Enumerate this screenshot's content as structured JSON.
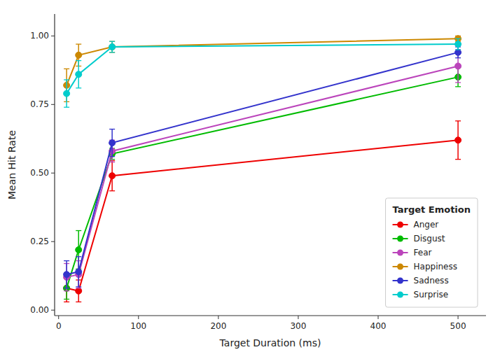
{
  "chart_data": {
    "type": "line",
    "x_label": "Target Duration (ms)",
    "y_label": "Mean Hit Rate",
    "legend_title": "Target Emotion",
    "x": [
      10,
      25,
      67,
      500
    ],
    "series": [
      {
        "name": "Anger",
        "color": "#EE0000",
        "values": [
          0.08,
          0.07,
          0.49,
          0.62
        ],
        "errors": [
          0.05,
          0.04,
          0.055,
          0.07
        ]
      },
      {
        "name": "Disgust",
        "color": "#00BB00",
        "values": [
          0.08,
          0.22,
          0.57,
          0.85
        ],
        "errors": [
          0.04,
          0.07,
          0.02,
          0.035
        ]
      },
      {
        "name": "Fear",
        "color": "#BB44BB",
        "values": [
          0.12,
          0.13,
          0.58,
          0.89
        ],
        "errors": [
          0.05,
          0.05,
          0.04,
          0.06
        ]
      },
      {
        "name": "Happiness",
        "color": "#CC8800",
        "values": [
          0.82,
          0.93,
          0.96,
          0.99
        ],
        "errors": [
          0.06,
          0.04,
          0.02,
          0.01
        ]
      },
      {
        "name": "Sadness",
        "color": "#3333CC",
        "values": [
          0.13,
          0.14,
          0.61,
          0.94
        ],
        "errors": [
          0.05,
          0.055,
          0.05,
          0.02
        ]
      },
      {
        "name": "Surprise",
        "color": "#00CCCC",
        "values": [
          0.79,
          0.86,
          0.96,
          0.97
        ],
        "errors": [
          0.05,
          0.05,
          0.02,
          0.02
        ]
      }
    ],
    "xlim": [
      -5,
      535
    ],
    "ylim": [
      -0.02,
      1.08
    ],
    "xticks": [
      0,
      100,
      200,
      300,
      400,
      500
    ],
    "yticks": [
      {
        "value": 0.0,
        "label": "0.00"
      },
      0.25,
      {
        "value": 0.5,
        "label": "0.50"
      },
      0.75,
      {
        "value": 1.0,
        "label": "1.00"
      }
    ],
    "marker": "circle",
    "grid": false,
    "legend": "lower right"
  }
}
